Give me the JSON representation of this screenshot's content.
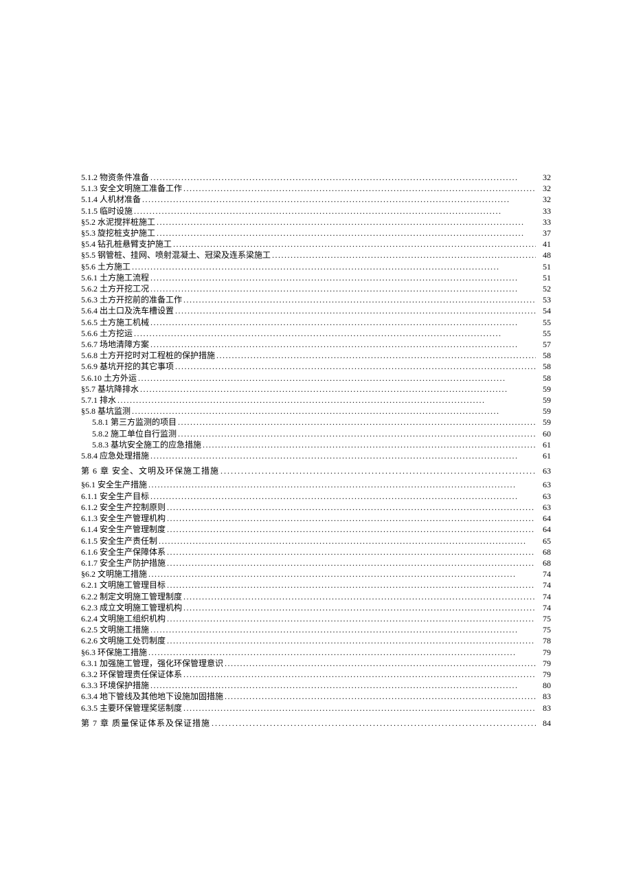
{
  "dots": ".......................................................................................................................",
  "entries": [
    {
      "type": "item",
      "indent": 0,
      "title": "5.1.2 物资条件准备 ",
      "page": "32"
    },
    {
      "type": "item",
      "indent": 0,
      "title": "5.1.3 安全文明施工准备工作 ",
      "page": "32"
    },
    {
      "type": "item",
      "indent": 0,
      "title": "5.1.4 人机材准备 ",
      "page": "32"
    },
    {
      "type": "item",
      "indent": 0,
      "title": "5.1.5 临时设施 ",
      "page": "33"
    },
    {
      "type": "item",
      "indent": 0,
      "title": "§5.2 水泥搅拌桩施工 ",
      "page": "33"
    },
    {
      "type": "item",
      "indent": 0,
      "title": "§5.3 旋挖桩支护施工 ",
      "page": "37"
    },
    {
      "type": "item",
      "indent": 0,
      "title": "§5.4 钻孔桩悬臂支护施工 ",
      "page": "41"
    },
    {
      "type": "item",
      "indent": 0,
      "title": "§5.5 钢管桩、挂网、喷射混凝土、冠梁及连系梁施工 ",
      "page": "48"
    },
    {
      "type": "item",
      "indent": 0,
      "title": "§5.6 土方施工 ",
      "page": "51"
    },
    {
      "type": "item",
      "indent": 0,
      "title": "5.6.1 土方施工流程 ",
      "page": "51"
    },
    {
      "type": "item",
      "indent": 0,
      "title": "5.6.2 土方开挖工况 ",
      "page": "52"
    },
    {
      "type": "item",
      "indent": 0,
      "title": "5.6.3 土方开挖前的准备工作 ",
      "page": "53"
    },
    {
      "type": "item",
      "indent": 0,
      "title": "5.6.4 出土口及洗车槽设置 ",
      "page": "54"
    },
    {
      "type": "item",
      "indent": 0,
      "title": "5.6.5 土方施工机械 ",
      "page": "55"
    },
    {
      "type": "item",
      "indent": 0,
      "title": "5.6.6 土方挖运 ",
      "page": "55"
    },
    {
      "type": "item",
      "indent": 0,
      "title": "5.6.7 场地清障方案 ",
      "page": "57"
    },
    {
      "type": "item",
      "indent": 0,
      "title": "5.6.8 土方开挖时对工程桩的保护措施 ",
      "page": "58"
    },
    {
      "type": "item",
      "indent": 0,
      "title": "5.6.9 基坑开挖的其它事项 ",
      "page": "58"
    },
    {
      "type": "item",
      "indent": 0,
      "title": "5.6.10 土方外运 ",
      "page": "58"
    },
    {
      "type": "item",
      "indent": 0,
      "title": "§5.7 基坑降排水 ",
      "page": "59"
    },
    {
      "type": "item",
      "indent": 0,
      "title": "5.7.1 排水 ",
      "page": "59"
    },
    {
      "type": "item",
      "indent": 0,
      "title": "§5.8 基坑监测 ",
      "page": "59"
    },
    {
      "type": "item",
      "indent": 1,
      "title": "5.8.1 第三方监测的项目 ",
      "page": "59"
    },
    {
      "type": "item",
      "indent": 1,
      "title": "5.8.2 施工单位自行监测 ",
      "page": "60"
    },
    {
      "type": "item",
      "indent": 1,
      "title": "5.8.3 基坑安全施工的应急措施 ",
      "page": "61"
    },
    {
      "type": "item",
      "indent": 0,
      "title": "5.8.4 应急处理措施 ",
      "page": "61"
    },
    {
      "type": "chapter",
      "title": "第 6 章  安全、文明及环保施工措施",
      "page": "63"
    },
    {
      "type": "item",
      "indent": 0,
      "title": "§6.1 安全生产措施 ",
      "page": "63"
    },
    {
      "type": "item",
      "indent": 0,
      "title": "6.1.1 安全生产目标 ",
      "page": "63"
    },
    {
      "type": "item",
      "indent": 0,
      "title": "6.1.2 安全生产控制原则 ",
      "page": "63"
    },
    {
      "type": "item",
      "indent": 0,
      "title": "6.1.3 安全生产管理机构 ",
      "page": "64"
    },
    {
      "type": "item",
      "indent": 0,
      "title": "6.1.4 安全生产管理制度 ",
      "page": "64"
    },
    {
      "type": "item",
      "indent": 0,
      "title": "6.1.5 安全生产责任制 ",
      "page": "65"
    },
    {
      "type": "item",
      "indent": 0,
      "title": "6.1.6 安全生产保障体系 ",
      "page": "68"
    },
    {
      "type": "item",
      "indent": 0,
      "title": "6.1.7 安全生产防护措施 ",
      "page": "68"
    },
    {
      "type": "item",
      "indent": 0,
      "title": "§6.2 文明施工措施 ",
      "page": "74"
    },
    {
      "type": "item",
      "indent": 0,
      "title": "6.2.1 文明施工管理目标 ",
      "page": "74"
    },
    {
      "type": "item",
      "indent": 0,
      "title": "6.2.2 制定文明施工管理制度 ",
      "page": "74"
    },
    {
      "type": "item",
      "indent": 0,
      "title": "6.2.3 成立文明施工管理机构 ",
      "page": "74"
    },
    {
      "type": "item",
      "indent": 0,
      "title": "6.2.4 文明施工组织机构 ",
      "page": "75"
    },
    {
      "type": "item",
      "indent": 0,
      "title": "6.2.5 文明施工措施 ",
      "page": "75"
    },
    {
      "type": "item",
      "indent": 0,
      "title": "6.2.6 文明施工处罚制度 ",
      "page": "78"
    },
    {
      "type": "item",
      "indent": 0,
      "title": "§6.3 环保施工措施 ",
      "page": "79"
    },
    {
      "type": "item",
      "indent": 0,
      "title": "6.3.1 加强施工管理，强化环保管理意识 ",
      "page": "79"
    },
    {
      "type": "item",
      "indent": 0,
      "title": "6.3.2 环保管理责任保证体系 ",
      "page": "79"
    },
    {
      "type": "item",
      "indent": 0,
      "title": "6.3.3 环境保护措施 ",
      "page": "80"
    },
    {
      "type": "item",
      "indent": 0,
      "title": "6.3.4 地下管线及其他地下设施加固措施 ",
      "page": "83"
    },
    {
      "type": "item",
      "indent": 0,
      "title": "6.3.5 主要环保管理奖惩制度 ",
      "page": "83"
    },
    {
      "type": "chapter",
      "title": "第 7 章  质量保证体系及保证措施",
      "page": "84"
    }
  ]
}
